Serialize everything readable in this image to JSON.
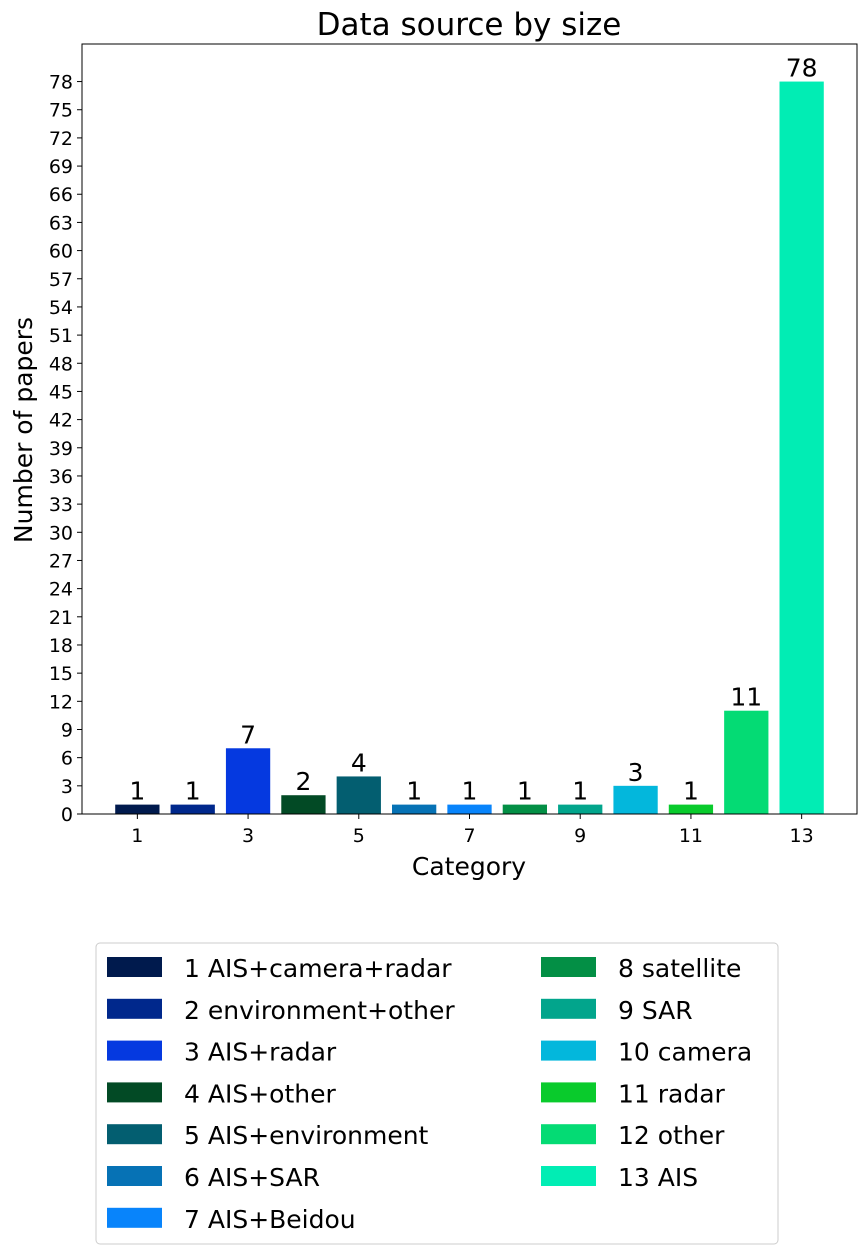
{
  "chart_data": {
    "type": "bar",
    "title": "Data source by size",
    "xlabel": "Category",
    "ylabel": "Number of papers",
    "categories": [
      1,
      2,
      3,
      4,
      5,
      6,
      7,
      8,
      9,
      10,
      11,
      12,
      13
    ],
    "values": [
      1,
      1,
      7,
      2,
      4,
      1,
      1,
      1,
      1,
      3,
      1,
      11,
      78
    ],
    "bar_labels": [
      "1",
      "1",
      "7",
      "2",
      "4",
      "1",
      "1",
      "1",
      "1",
      "3",
      "1",
      "11",
      "78"
    ],
    "colors": [
      "#001a4d",
      "#00288c",
      "#0539e0",
      "#024a25",
      "#035e70",
      "#0672b5",
      "#0884fb",
      "#038f45",
      "#02a58c",
      "#03b7dc",
      "#09cb2c",
      "#04db74",
      "#01edb4"
    ],
    "xlim": [
      0,
      14
    ],
    "ylim": [
      0,
      82
    ],
    "x_ticks": [
      1,
      3,
      5,
      7,
      9,
      11,
      13
    ],
    "x_tick_labels": [
      "1",
      "3",
      "5",
      "7",
      "9",
      "11",
      "13"
    ],
    "y_ticks": [
      0,
      3,
      6,
      9,
      12,
      15,
      18,
      21,
      24,
      27,
      30,
      33,
      36,
      39,
      42,
      45,
      48,
      51,
      54,
      57,
      60,
      63,
      66,
      69,
      72,
      75,
      78
    ],
    "y_tick_labels": [
      "0",
      "3",
      "6",
      "9",
      "12",
      "15",
      "18",
      "21",
      "24",
      "27",
      "30",
      "33",
      "36",
      "39",
      "42",
      "45",
      "48",
      "51",
      "54",
      "57",
      "60",
      "63",
      "66",
      "69",
      "72",
      "75",
      "78"
    ],
    "grid": false,
    "legend": {
      "placement": "below",
      "columns": 2,
      "entries": [
        "1 AIS+camera+radar",
        "2 environment+other",
        "3 AIS+radar",
        "4 AIS+other",
        "5 AIS+environment",
        "6 AIS+SAR",
        "7 AIS+Beidou",
        "8 satellite",
        "9 SAR",
        "10 camera",
        "11 radar",
        "12 other",
        "13 AIS"
      ]
    }
  }
}
